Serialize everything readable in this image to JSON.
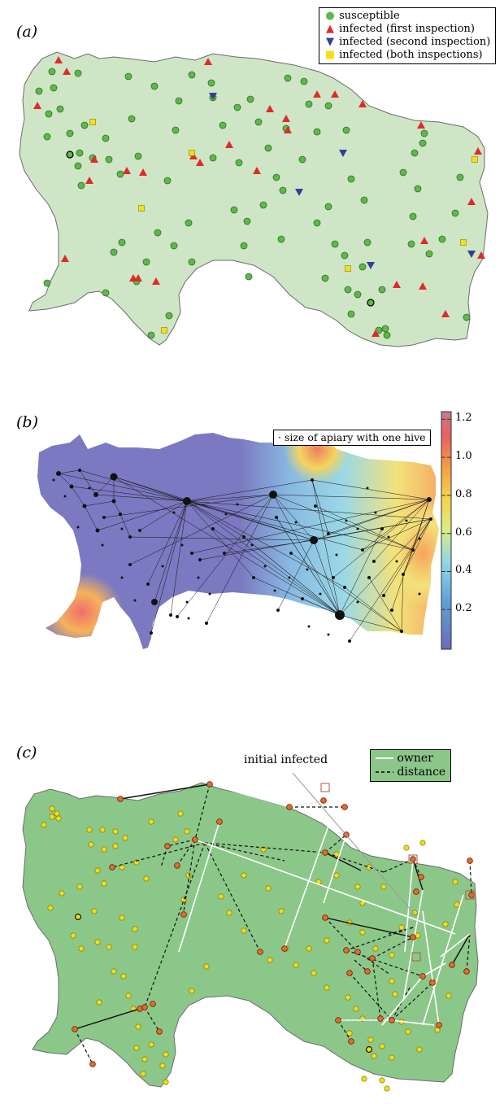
{
  "panel_a": {
    "label": "(a)",
    "legend": [
      {
        "symbol": "circle",
        "color": "#5eb84a",
        "text": "susceptible"
      },
      {
        "symbol": "triangle-up",
        "color": "#e02a2a",
        "text": "infected (first inspection)"
      },
      {
        "symbol": "triangle-down",
        "color": "#2f3f9c",
        "text": "infected (second inspection)"
      },
      {
        "symbol": "square",
        "color": "#f1e11c",
        "text": "infected (both inspections)"
      }
    ],
    "land_color": "#cfe6c6"
  },
  "panel_b": {
    "label": "(b)",
    "legend_text": "size of apiary with one hive",
    "colorbar_ticks": [
      "1.2",
      "1.0",
      "0.8",
      "0.6",
      "0.4",
      "0.2"
    ],
    "colormap": [
      "#6b6bb7",
      "#5fa0d8",
      "#8fd6e6",
      "#d9ec86",
      "#f7d24b",
      "#f39845",
      "#e76060",
      "#c97a8a"
    ]
  },
  "panel_c": {
    "label": "(c)",
    "annotation": "initial infected",
    "legend": [
      {
        "style": "solid-white",
        "text": "owner"
      },
      {
        "style": "dashed-black",
        "text": "distance"
      }
    ],
    "land_color": "#8cc78a"
  }
}
